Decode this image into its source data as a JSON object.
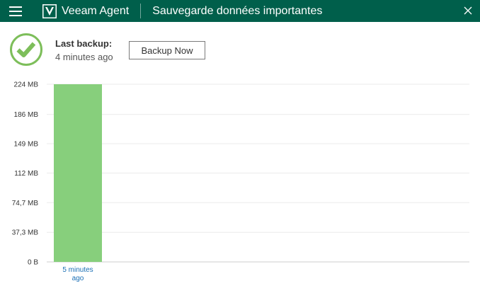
{
  "titlebar": {
    "app_name": "Veeam Agent",
    "job_title": "Sauvegarde données importantes",
    "bg_color": "#005f4b"
  },
  "status": {
    "icon": "check-circle-icon",
    "icon_color": "#7dbe5a",
    "last_backup_label": "Last backup:",
    "last_backup_value": "4 minutes ago"
  },
  "actions": {
    "backup_now_label": "Backup Now"
  },
  "chart_data": {
    "type": "bar",
    "categories": [
      "5 minutes ago"
    ],
    "category_lines": [
      [
        "5 minutes",
        "ago"
      ]
    ],
    "values": [
      224
    ],
    "unit": "MB",
    "ylim": [
      0,
      224
    ],
    "y_ticks": [
      0,
      37.3,
      74.7,
      112,
      149,
      186,
      224
    ],
    "y_tick_labels": [
      "0 B",
      "37,3 MB",
      "74,7 MB",
      "112 MB",
      "149 MB",
      "186 MB",
      "224 MB"
    ],
    "grid": true,
    "bar_color": "#87cf7c",
    "label_color": "#1a6fb5"
  }
}
